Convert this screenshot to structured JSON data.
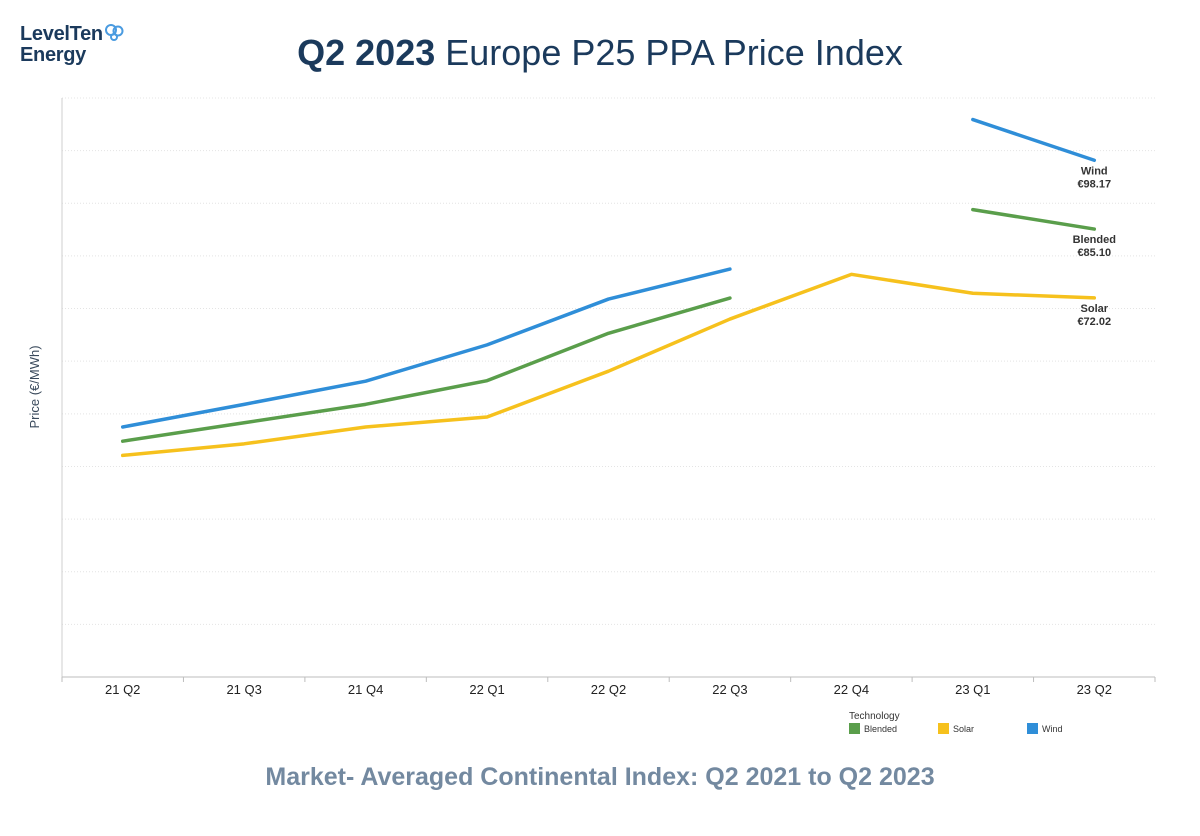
{
  "brand": {
    "line1": "LevelTen",
    "line2": "Energy",
    "mark_color": "#4a9be0"
  },
  "title": {
    "bold": "Q2 2023",
    "rest": " Europe P25 PPA Price Index"
  },
  "subtitle": "Market- Averaged Continental Index: Q2 2021 to Q2 2023",
  "chart_data": {
    "type": "line",
    "categories": [
      "21 Q2",
      "21 Q3",
      "21 Q4",
      "22 Q1",
      "22 Q2",
      "22 Q3",
      "22 Q4",
      "23 Q1",
      "23 Q2"
    ],
    "ylabel": "Price (€/MWh)",
    "ylim": [
      0,
      110
    ],
    "y_ticks_shown": false,
    "grid": "horizontal-dotted",
    "legend": {
      "title": "Technology",
      "placement": "bottom-right"
    },
    "series": [
      {
        "name": "Blended",
        "color": "#5a9e4b",
        "values": [
          44.8,
          48.3,
          51.8,
          56.3,
          65.3,
          72.0,
          null,
          88.8,
          85.1
        ],
        "end_label": "Blended",
        "end_value": "€85.10"
      },
      {
        "name": "Solar",
        "color": "#f6c11d",
        "values": [
          42.1,
          44.3,
          47.5,
          49.4,
          58.1,
          68.0,
          76.5,
          72.9,
          72.02
        ],
        "end_label": "Solar",
        "end_value": "€72.02"
      },
      {
        "name": "Wind",
        "color": "#2f8ed8",
        "values": [
          47.5,
          51.8,
          56.2,
          63.1,
          71.8,
          77.5,
          null,
          105.9,
          98.17
        ],
        "end_label": "Wind",
        "end_value": "€98.17"
      }
    ]
  }
}
